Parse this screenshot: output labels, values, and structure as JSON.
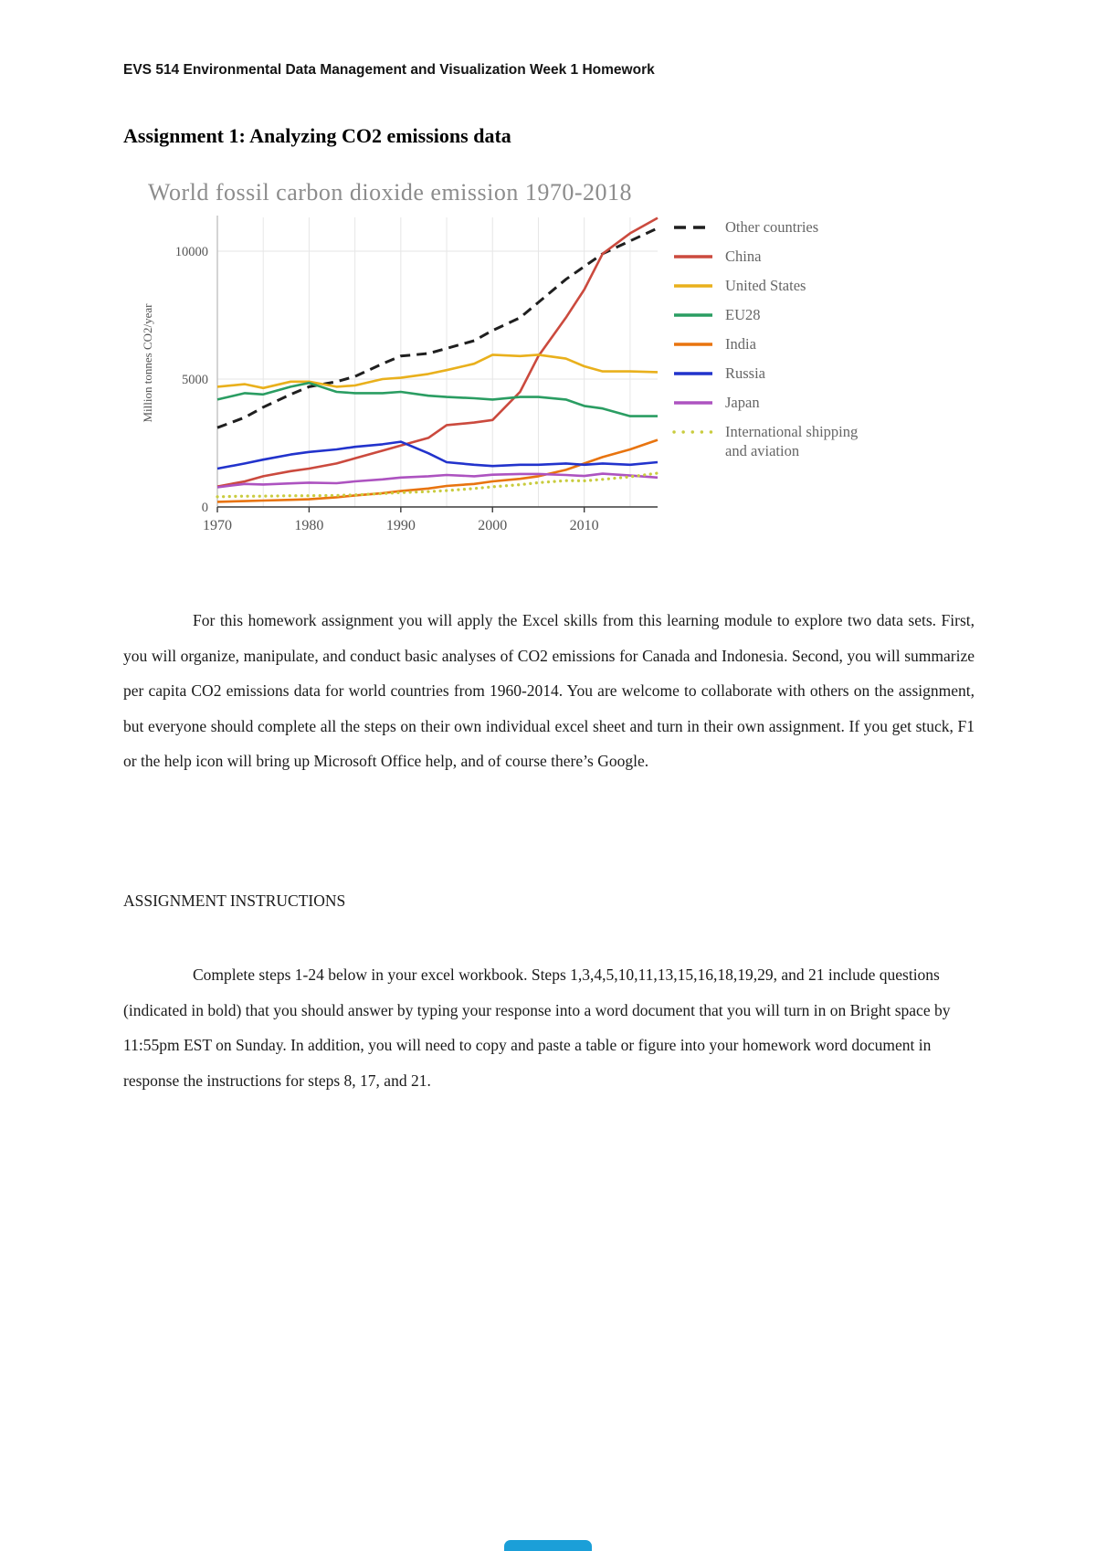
{
  "page": {
    "header": "EVS 514 Environmental Data Management and Visualization Week 1 Homework",
    "title": "Assignment 1: Analyzing CO2 emissions data"
  },
  "chart_data": {
    "type": "line",
    "title": "World fossil carbon dioxide emission 1970-2018",
    "xlabel": "",
    "ylabel": "Million tonnes CO2/year",
    "xlim": [
      1970,
      2018
    ],
    "ylim": [
      0,
      11500
    ],
    "x_ticks": [
      1970,
      1980,
      1990,
      2000,
      2010
    ],
    "y_ticks": [
      0,
      5000,
      10000
    ],
    "grid": true,
    "legend_position": "right",
    "x": [
      1970,
      1973,
      1975,
      1978,
      1980,
      1983,
      1985,
      1988,
      1990,
      1993,
      1995,
      1998,
      2000,
      2003,
      2005,
      2008,
      2010,
      2012,
      2015,
      2018
    ],
    "series": [
      {
        "name": "Other countries",
        "color": "#1f1f1f",
        "width": 3,
        "dash": "11,7",
        "legend_dash": "13,8",
        "values": [
          3100,
          3500,
          3900,
          4400,
          4700,
          4900,
          5100,
          5600,
          5900,
          6000,
          6200,
          6500,
          6900,
          7400,
          8000,
          8900,
          9400,
          9900,
          10400,
          10900
        ]
      },
      {
        "name": "China",
        "color": "#cb4a3e",
        "width": 2.6,
        "values": [
          800,
          1000,
          1200,
          1400,
          1500,
          1700,
          1900,
          2200,
          2400,
          2700,
          3200,
          3300,
          3400,
          4500,
          5900,
          7400,
          8500,
          9900,
          10700,
          11300
        ]
      },
      {
        "name": "United States",
        "color": "#e9b01c",
        "width": 2.6,
        "values": [
          4700,
          4800,
          4650,
          4900,
          4900,
          4700,
          4750,
          5000,
          5050,
          5200,
          5350,
          5600,
          5950,
          5900,
          5950,
          5800,
          5500,
          5300,
          5300,
          5270
        ]
      },
      {
        "name": "EU28",
        "color": "#2a9d62",
        "width": 2.6,
        "values": [
          4200,
          4450,
          4400,
          4700,
          4850,
          4500,
          4450,
          4450,
          4500,
          4350,
          4300,
          4250,
          4200,
          4300,
          4300,
          4200,
          3950,
          3850,
          3550,
          3550
        ]
      },
      {
        "name": "India",
        "color": "#e8740f",
        "width": 2.6,
        "values": [
          200,
          230,
          250,
          280,
          300,
          380,
          450,
          540,
          620,
          720,
          820,
          900,
          1000,
          1100,
          1200,
          1450,
          1700,
          1950,
          2250,
          2620
        ]
      },
      {
        "name": "Russia",
        "color": "#2233cc",
        "width": 2.6,
        "values": [
          1500,
          1700,
          1850,
          2050,
          2150,
          2250,
          2350,
          2450,
          2550,
          2100,
          1750,
          1650,
          1600,
          1650,
          1650,
          1700,
          1650,
          1700,
          1650,
          1750
        ]
      },
      {
        "name": "Japan",
        "color": "#ad53c0",
        "width": 2.6,
        "values": [
          770,
          900,
          880,
          920,
          950,
          930,
          1000,
          1080,
          1150,
          1200,
          1250,
          1200,
          1260,
          1290,
          1290,
          1250,
          1210,
          1300,
          1230,
          1150
        ]
      },
      {
        "name": "International shipping and aviation",
        "color": "#c9cc3f",
        "width": 3.2,
        "dash": "0.1,6.5",
        "legend_dash": "0.1,10",
        "cap": "round",
        "values": [
          400,
          420,
          420,
          440,
          440,
          450,
          470,
          520,
          560,
          600,
          640,
          720,
          790,
          870,
          950,
          1030,
          1020,
          1080,
          1180,
          1320
        ]
      }
    ]
  },
  "body": {
    "paragraph1": "For this homework assignment you will apply the Excel skills from this learning module to explore two data sets. First, you will organize, manipulate, and conduct basic analyses of CO2 emissions for Canada and Indonesia. Second, you will summarize per capita CO2 emissions data for world countries from 1960-2014. You are welcome to collaborate with others on the assignment, but everyone should complete all the steps on their own individual excel sheet and turn in their own assignment. If you get stuck, F1 or the help icon will bring up Microsoft Office help, and of course there’s Google.",
    "section_heading": "ASSIGNMENT INSTRUCTIONS",
    "paragraph2": "Complete steps 1-24 below in your excel workbook. Steps 1,3,4,5,10,11,13,15,16,18,19,29, and 21 include questions (indicated in bold) that you should answer by typing your response into a word document that you will turn in on Bright space by 11:55pm EST on Sunday.  In addition, you will need to copy and paste a table or figure into your homework word document in response the instructions for steps 8, 17, and 21."
  },
  "footer": {
    "overlay_button_color": "#1b9fd8"
  }
}
